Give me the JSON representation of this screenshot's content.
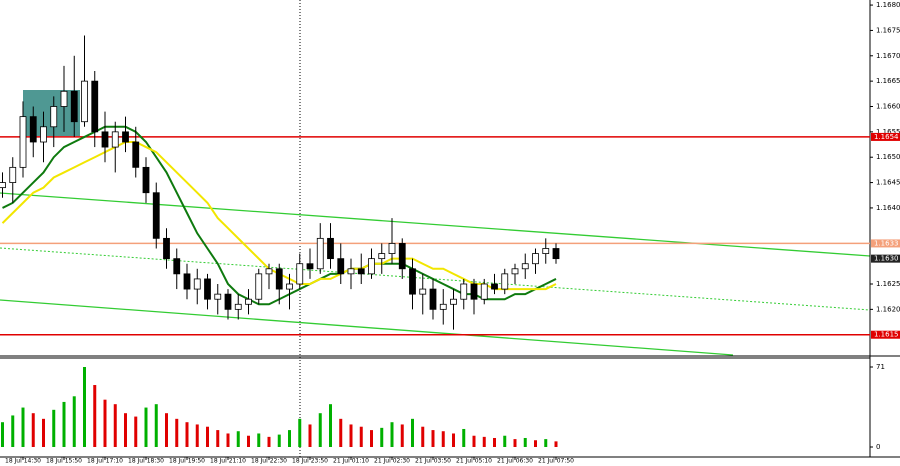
{
  "chart_data": {
    "type": "candlestick",
    "categories": [
      null,
      null,
      "18 Jul 14:30",
      null,
      null,
      null,
      "18 Jul 15:50",
      null,
      null,
      null,
      "18 Jul 17:10",
      null,
      null,
      null,
      "18 Jul 18:30",
      null,
      null,
      null,
      "18 Jul 19:50",
      null,
      null,
      null,
      "18 Jul 21:10",
      null,
      null,
      null,
      "18 Jul 22:30",
      null,
      null,
      null,
      "18 Jul 23:50",
      null,
      null,
      null,
      "21 Jul 01:10",
      null,
      null,
      null,
      "21 Jul 02:30",
      null,
      null,
      null,
      "21 Jul 03:50",
      null,
      null,
      null,
      "21 Jul 05:10",
      null,
      null,
      null,
      "21 Jul 06:30",
      null,
      null,
      null,
      "21 Jul 07:50"
    ],
    "open": [
      1.1644,
      1.1645,
      1.1648,
      1.1658,
      1.1653,
      1.1656,
      1.166,
      1.1663,
      1.1657,
      1.1665,
      1.1655,
      1.1652,
      1.1655,
      1.1653,
      1.1648,
      1.1643,
      1.1634,
      1.163,
      1.1627,
      1.1624,
      1.1626,
      1.1622,
      1.1623,
      1.162,
      1.1621,
      1.1622,
      1.1627,
      1.1628,
      1.1624,
      1.1625,
      1.1629,
      1.1628,
      1.1634,
      1.163,
      1.1627,
      1.1628,
      1.1627,
      1.163,
      1.1631,
      1.1633,
      1.1628,
      1.1623,
      1.1624,
      1.162,
      1.1621,
      1.1622,
      1.1625,
      1.1622,
      1.1625,
      1.1624,
      1.1627,
      1.1628,
      1.1629,
      1.1631,
      1.1632
    ],
    "high": [
      1.1647,
      1.165,
      1.1661,
      1.166,
      1.1659,
      1.1662,
      1.1668,
      1.167,
      1.1674,
      1.1667,
      1.1659,
      1.1657,
      1.1658,
      1.1656,
      1.165,
      1.1645,
      1.1636,
      1.1632,
      1.1629,
      1.1628,
      1.1627,
      1.1625,
      1.1624,
      1.1623,
      1.1624,
      1.1628,
      1.1629,
      1.1629,
      1.1627,
      1.1631,
      1.1632,
      1.1637,
      1.1637,
      1.1633,
      1.163,
      1.1631,
      1.1632,
      1.1633,
      1.1638,
      1.1634,
      1.163,
      1.1627,
      1.1626,
      1.1624,
      1.1624,
      1.1626,
      1.1626,
      1.1626,
      1.1627,
      1.1628,
      1.1629,
      1.1631,
      1.1632,
      1.1634,
      1.1633
    ],
    "low": [
      1.1642,
      1.1641,
      1.1646,
      1.165,
      1.1649,
      1.1652,
      1.1655,
      1.1654,
      1.1656,
      1.1652,
      1.1649,
      1.1647,
      1.1651,
      1.1646,
      1.1641,
      1.1632,
      1.1628,
      1.1624,
      1.1622,
      1.1621,
      1.162,
      1.1619,
      1.1618,
      1.1618,
      1.1619,
      1.1621,
      1.1624,
      1.1621,
      1.162,
      1.1624,
      1.1626,
      1.1627,
      1.1628,
      1.1625,
      1.1624,
      1.1625,
      1.1626,
      1.1627,
      1.1629,
      1.1626,
      1.162,
      1.1619,
      1.1618,
      1.1617,
      1.1616,
      1.162,
      1.1619,
      1.1621,
      1.1623,
      1.1623,
      1.1625,
      1.1626,
      1.1627,
      1.1629,
      1.1629
    ],
    "close": [
      1.1645,
      1.1648,
      1.1658,
      1.1653,
      1.1656,
      1.166,
      1.1663,
      1.1657,
      1.1665,
      1.1655,
      1.1652,
      1.1655,
      1.1653,
      1.1648,
      1.1643,
      1.1634,
      1.163,
      1.1627,
      1.1624,
      1.1626,
      1.1622,
      1.1623,
      1.162,
      1.1621,
      1.1622,
      1.1627,
      1.1628,
      1.1624,
      1.1625,
      1.1629,
      1.1628,
      1.1634,
      1.163,
      1.1627,
      1.1628,
      1.1627,
      1.163,
      1.1631,
      1.1633,
      1.1628,
      1.1623,
      1.1624,
      1.162,
      1.1621,
      1.1622,
      1.1625,
      1.1622,
      1.1625,
      1.1624,
      1.1627,
      1.1628,
      1.1629,
      1.1631,
      1.1632,
      1.163
    ],
    "up_color": "#ffffff",
    "down_color": "#000000",
    "ylim": [
      1.1611,
      1.1681
    ],
    "yticks": [
      {
        "value": 1.168,
        "label": "1.1680"
      },
      1.1675,
      {
        "value": 1.167,
        "label": "1.1670"
      },
      1.1665,
      {
        "value": 1.166,
        "label": "1.1660"
      },
      1.1655,
      {
        "value": 1.165,
        "label": "1.1650"
      },
      1.1645,
      {
        "value": 1.164,
        "label": "1.1640"
      },
      1.1625,
      {
        "value": 1.162,
        "label": "1.1620"
      }
    ],
    "lines": [
      {
        "color": "#0e7a0e",
        "values": [
          1.164,
          1.1641,
          1.1643,
          1.1645,
          1.1647,
          1.165,
          1.1652,
          1.1653,
          1.1654,
          1.1655,
          1.1656,
          1.1656,
          1.1656,
          1.1655,
          1.1653,
          1.165,
          1.1647,
          1.1643,
          1.1639,
          1.1635,
          1.1632,
          1.1629,
          1.1625,
          1.1623,
          1.1622,
          1.1621,
          1.1621,
          1.1622,
          1.1623,
          1.1624,
          1.1625,
          1.1626,
          1.1627,
          1.1627,
          1.1628,
          1.1628,
          1.1629,
          1.1629,
          1.1629,
          1.1629,
          1.1628,
          1.1627,
          1.1626,
          1.1625,
          1.1624,
          1.1623,
          1.1623,
          1.1622,
          1.1622,
          1.1622,
          1.1623,
          1.1623,
          1.1624,
          1.1625,
          1.1626
        ]
      },
      {
        "color": "#f2e600",
        "values": [
          1.1637,
          1.1639,
          1.1641,
          1.1643,
          1.1644,
          1.1646,
          1.1647,
          1.1648,
          1.1649,
          1.165,
          1.1651,
          1.1652,
          1.1653,
          1.1653,
          1.1652,
          1.1651,
          1.1649,
          1.1647,
          1.1645,
          1.1643,
          1.1641,
          1.1638,
          1.1636,
          1.1634,
          1.1632,
          1.163,
          1.1628,
          1.1627,
          1.1626,
          1.1625,
          1.1625,
          1.1626,
          1.1626,
          1.1627,
          1.1628,
          1.1628,
          1.1629,
          1.1629,
          1.163,
          1.163,
          1.163,
          1.1629,
          1.1628,
          1.1628,
          1.1627,
          1.1626,
          1.1625,
          1.1625,
          1.1624,
          1.1624,
          1.1624,
          1.1624,
          1.1624,
          1.1624,
          1.1625
        ]
      }
    ],
    "levels": [
      {
        "value": 1.1654,
        "color": "#e00000"
      },
      {
        "value": 1.1633,
        "color": "#f4a07a"
      },
      {
        "value": 1.1615,
        "color": "#e00000"
      }
    ],
    "last_price": {
      "value": 1.163,
      "label": "1.1630"
    },
    "volume": {
      "values": [
        22,
        28,
        35,
        30,
        25,
        33,
        40,
        45,
        71,
        55,
        42,
        38,
        30,
        27,
        35,
        38,
        30,
        25,
        22,
        20,
        18,
        15,
        12,
        14,
        10,
        12,
        9,
        11,
        15,
        25,
        20,
        30,
        38,
        25,
        20,
        18,
        15,
        17,
        22,
        20,
        25,
        18,
        15,
        14,
        12,
        16,
        10,
        9,
        8,
        10,
        7,
        8,
        6,
        7,
        5
      ],
      "ylim": [
        0,
        71
      ],
      "yticks": [
        0,
        71
      ],
      "up_color": "#00b000",
      "down_color": "#e00000"
    }
  }
}
